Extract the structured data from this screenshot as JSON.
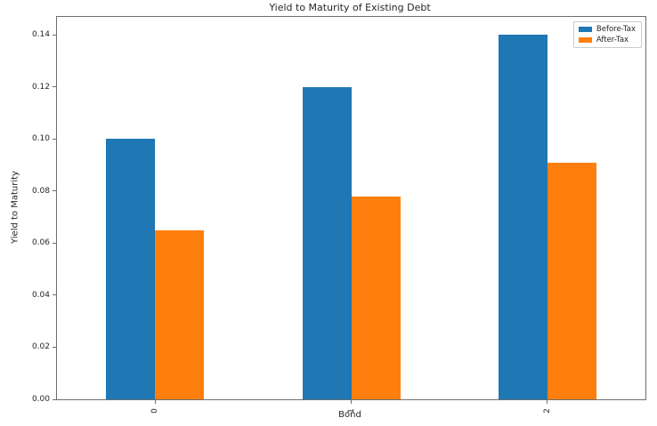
{
  "chart_data": {
    "type": "bar",
    "title": "Yield to Maturity of Existing Debt",
    "xlabel": "Bond",
    "ylabel": "Yield to Maturity",
    "categories": [
      "0",
      "1",
      "2"
    ],
    "series": [
      {
        "name": "Before-Tax",
        "color": "#1f77b4",
        "values": [
          0.1,
          0.12,
          0.14
        ]
      },
      {
        "name": "After-Tax",
        "color": "#ff7f0e",
        "values": [
          0.065,
          0.078,
          0.091
        ]
      }
    ],
    "ylim": [
      0,
      0.147
    ],
    "yticks": [
      0.0,
      0.02,
      0.04,
      0.06,
      0.08,
      0.1,
      0.12,
      0.14
    ],
    "ytick_labels": [
      "0.00",
      "0.02",
      "0.04",
      "0.06",
      "0.08",
      "0.10",
      "0.12",
      "0.14"
    ],
    "xtick_rotation": 90,
    "grid": false,
    "legend_position": "upper right"
  }
}
